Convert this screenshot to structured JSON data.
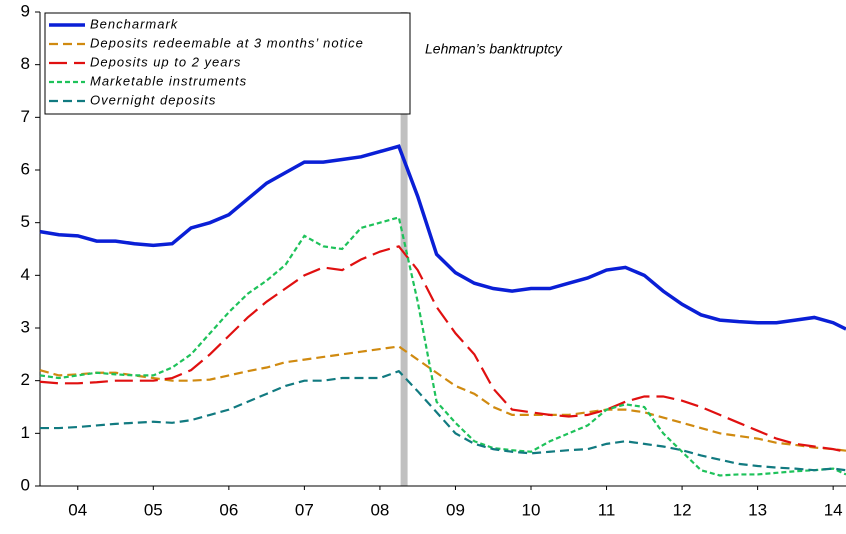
{
  "chart_data": {
    "type": "line",
    "x": [
      4.0,
      4.25,
      4.5,
      4.75,
      5.0,
      5.25,
      5.5,
      5.75,
      6.0,
      6.25,
      6.5,
      6.75,
      7.0,
      7.25,
      7.5,
      7.75,
      8.0,
      8.25,
      8.5,
      8.75,
      9.0,
      9.25,
      9.5,
      9.75,
      10.0,
      10.25,
      10.5,
      10.75,
      11.0,
      11.25,
      11.5,
      11.75,
      12.0,
      12.25,
      12.5,
      12.75,
      13.0,
      13.25,
      13.5,
      13.75,
      14.0,
      14.25,
      14.5,
      14.67
    ],
    "series": [
      {
        "name": "Bencharmark",
        "color": "#0a1fd6",
        "line_style": "solid",
        "values": [
          4.83,
          4.77,
          4.75,
          4.65,
          4.65,
          4.6,
          4.57,
          4.6,
          4.9,
          5.0,
          5.15,
          5.45,
          5.75,
          5.95,
          6.15,
          6.15,
          6.2,
          6.25,
          6.35,
          6.45,
          5.5,
          4.4,
          4.05,
          3.85,
          3.75,
          3.7,
          3.75,
          3.75,
          3.85,
          3.95,
          4.1,
          4.15,
          4.0,
          3.7,
          3.45,
          3.25,
          3.15,
          3.12,
          3.1,
          3.1,
          3.15,
          3.2,
          3.1,
          2.98
        ]
      },
      {
        "name": "Deposits redeemable at 3 months’ notice",
        "color": "#d08a10",
        "line_style": "dashed",
        "values": [
          2.2,
          2.1,
          2.12,
          2.15,
          2.15,
          2.1,
          2.05,
          2.0,
          2.0,
          2.02,
          2.1,
          2.18,
          2.25,
          2.35,
          2.4,
          2.45,
          2.5,
          2.55,
          2.6,
          2.65,
          2.4,
          2.15,
          1.9,
          1.75,
          1.5,
          1.35,
          1.35,
          1.35,
          1.35,
          1.4,
          1.45,
          1.45,
          1.4,
          1.3,
          1.2,
          1.1,
          1.0,
          0.95,
          0.9,
          0.82,
          0.78,
          0.73,
          0.7,
          0.67
        ]
      },
      {
        "name": "Deposits up to 2 years",
        "color": "#e01010",
        "line_style": "long-dashed",
        "values": [
          1.98,
          1.95,
          1.95,
          1.97,
          2.0,
          2.0,
          2.0,
          2.05,
          2.2,
          2.5,
          2.85,
          3.2,
          3.5,
          3.75,
          4.0,
          4.15,
          4.1,
          4.3,
          4.45,
          4.55,
          4.1,
          3.4,
          2.9,
          2.5,
          1.85,
          1.45,
          1.4,
          1.35,
          1.32,
          1.35,
          1.45,
          1.6,
          1.7,
          1.7,
          1.62,
          1.5,
          1.35,
          1.2,
          1.05,
          0.9,
          0.8,
          0.75,
          0.7,
          0.65
        ]
      },
      {
        "name": "Marketable instruments",
        "color": "#1ec25a",
        "line_style": "short-dashed",
        "values": [
          2.1,
          2.05,
          2.1,
          2.15,
          2.12,
          2.1,
          2.1,
          2.25,
          2.5,
          2.9,
          3.3,
          3.65,
          3.9,
          4.2,
          4.75,
          4.55,
          4.5,
          4.9,
          5.0,
          5.1,
          3.5,
          1.6,
          1.2,
          0.85,
          0.72,
          0.68,
          0.65,
          0.85,
          1.0,
          1.15,
          1.45,
          1.55,
          1.5,
          1.0,
          0.65,
          0.3,
          0.2,
          0.22,
          0.22,
          0.25,
          0.28,
          0.3,
          0.33,
          0.22
        ]
      },
      {
        "name": "Overnight deposits",
        "color": "#117a80",
        "line_style": "dashed",
        "values": [
          1.1,
          1.1,
          1.12,
          1.15,
          1.18,
          1.2,
          1.22,
          1.2,
          1.25,
          1.35,
          1.45,
          1.6,
          1.75,
          1.9,
          2.0,
          2.0,
          2.05,
          2.05,
          2.05,
          2.18,
          1.8,
          1.4,
          1.0,
          0.8,
          0.7,
          0.65,
          0.62,
          0.65,
          0.68,
          0.7,
          0.8,
          0.85,
          0.8,
          0.75,
          0.68,
          0.58,
          0.5,
          0.42,
          0.38,
          0.35,
          0.33,
          0.3,
          0.33,
          0.3
        ]
      }
    ],
    "event": {
      "x": 8.82,
      "label": "Lehman’s banktruptcy"
    },
    "xlim": [
      4.0,
      14.67
    ],
    "xticks": [
      {
        "value": 4.5,
        "label": "04"
      },
      {
        "value": 5.5,
        "label": "05"
      },
      {
        "value": 6.5,
        "label": "06"
      },
      {
        "value": 7.5,
        "label": "07"
      },
      {
        "value": 8.5,
        "label": "08"
      },
      {
        "value": 9.5,
        "label": "09"
      },
      {
        "value": 10.5,
        "label": "10"
      },
      {
        "value": 11.5,
        "label": "11"
      },
      {
        "value": 12.5,
        "label": "12"
      },
      {
        "value": 13.5,
        "label": "13"
      },
      {
        "value": 14.5,
        "label": "14"
      }
    ],
    "ylim": [
      0,
      9
    ],
    "yticks": [
      0,
      1,
      2,
      3,
      4,
      5,
      6,
      7,
      8,
      9
    ],
    "legend": "top-left"
  }
}
